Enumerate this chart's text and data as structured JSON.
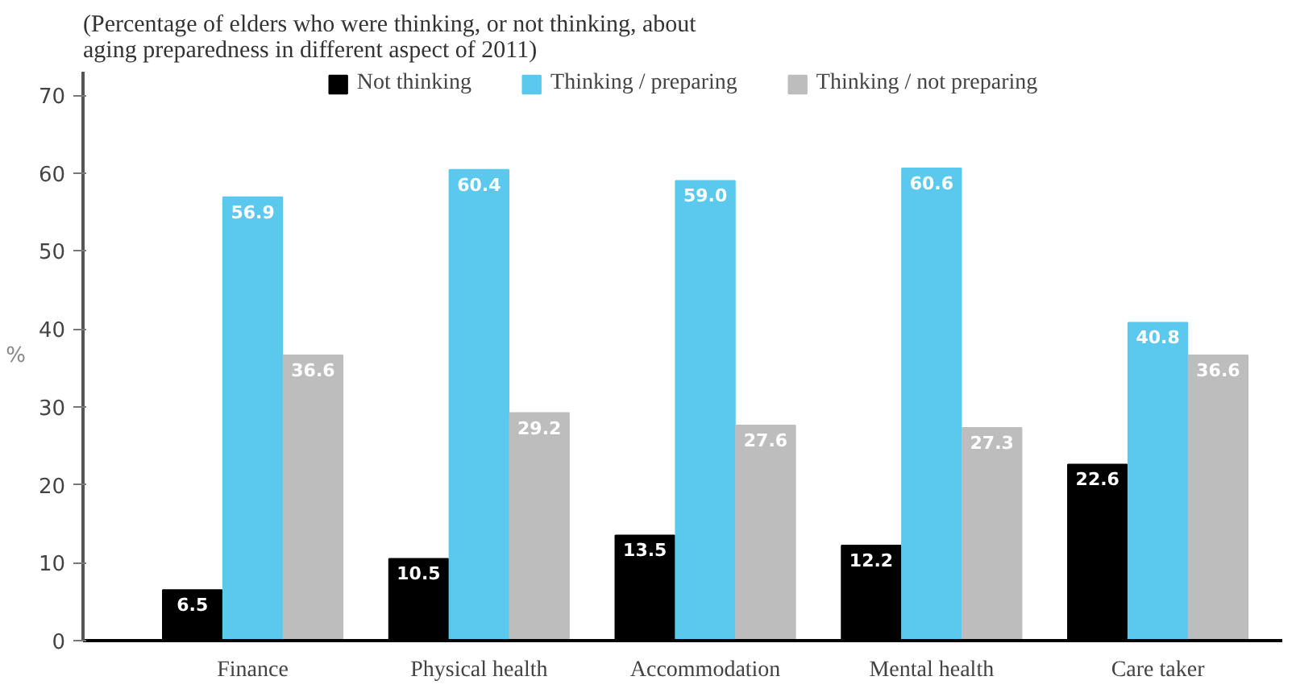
{
  "chart_data": {
    "type": "bar",
    "title": "(Percentage of elders who were thinking, or not thinking, about aging preparedness in different aspect of 2011)",
    "ylabel": "%",
    "categories": [
      "Finance",
      "Physical health",
      "Accommodation",
      "Mental health",
      "Care taker"
    ],
    "series": [
      {
        "name": "Not thinking",
        "color": "#000000",
        "values": [
          6.5,
          10.5,
          13.5,
          12.2,
          22.6
        ],
        "value_labels": [
          "6.5",
          "10.5",
          "13.5",
          "12.2",
          "22.6"
        ]
      },
      {
        "name": "Thinking / preparing",
        "color": "#5bc8ee",
        "values": [
          56.9,
          60.4,
          59.0,
          60.6,
          40.8
        ],
        "value_labels": [
          "56.9",
          "60.4",
          "59.0",
          "60.6",
          "40.8"
        ]
      },
      {
        "name": "Thinking / not preparing",
        "color": "#bdbdbd",
        "values": [
          36.6,
          29.2,
          27.6,
          27.3,
          36.6
        ],
        "value_labels": [
          "36.6",
          "29.2",
          "27.6",
          "27.3",
          "36.6"
        ]
      }
    ],
    "ylim": [
      0,
      73
    ],
    "yticks": [
      0,
      10,
      20,
      30,
      40,
      50,
      60,
      70
    ],
    "grid": false,
    "legend": "top"
  }
}
